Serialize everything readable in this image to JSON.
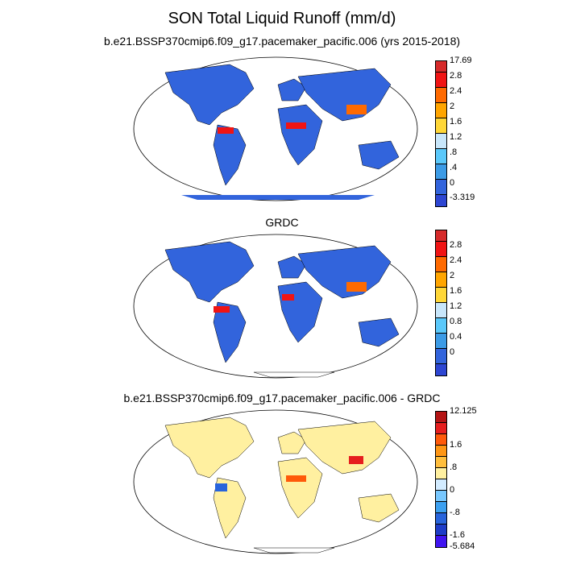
{
  "title": "SON Total Liquid Runoff (mm/d)",
  "panels": [
    {
      "subtitle": "b.e21.BSSP370cmip6.f09_g17.pacemaker_pacific.006 (yrs 2015-2018)",
      "colorbar": {
        "colors": [
          "#d62a2a",
          "#f01414",
          "#ff6a00",
          "#ffa500",
          "#ffd738",
          "#c8e6fa",
          "#5ac8fa",
          "#3c9be6",
          "#3264dc",
          "#2d46d2",
          "#4014f0"
        ],
        "labels": [
          "17.69",
          "2.8",
          "2.4",
          "2",
          "1.6",
          "1.2",
          ".8",
          ".4",
          "0",
          "-3.319"
        ]
      }
    },
    {
      "subtitle": "GRDC",
      "colorbar": {
        "colors": [
          "#d62a2a",
          "#f01414",
          "#ff6a00",
          "#ffa500",
          "#ffd738",
          "#c8e6fa",
          "#5ac8fa",
          "#3c9be6",
          "#3264dc",
          "#2d46d2",
          "#4014f0"
        ],
        "labels": [
          "2.8",
          "2.4",
          "2",
          "1.6",
          "1.2",
          "0.8",
          "0.4",
          "0"
        ]
      }
    },
    {
      "subtitle": "b.e21.BSSP370cmip6.f09_g17.pacemaker_pacific.006 - GRDC",
      "colorbar": {
        "colors": [
          "#b41414",
          "#e61e1e",
          "#ff5a0a",
          "#ff9614",
          "#ffbe3c",
          "#fff0a0",
          "#d2ebff",
          "#78c8ff",
          "#3ca0f0",
          "#2864dc",
          "#1e3cc8",
          "#4014f0"
        ],
        "labels": [
          "12.125",
          "1.6",
          ".8",
          "0",
          "-.8",
          "-1.6",
          "-5.684"
        ]
      }
    }
  ]
}
